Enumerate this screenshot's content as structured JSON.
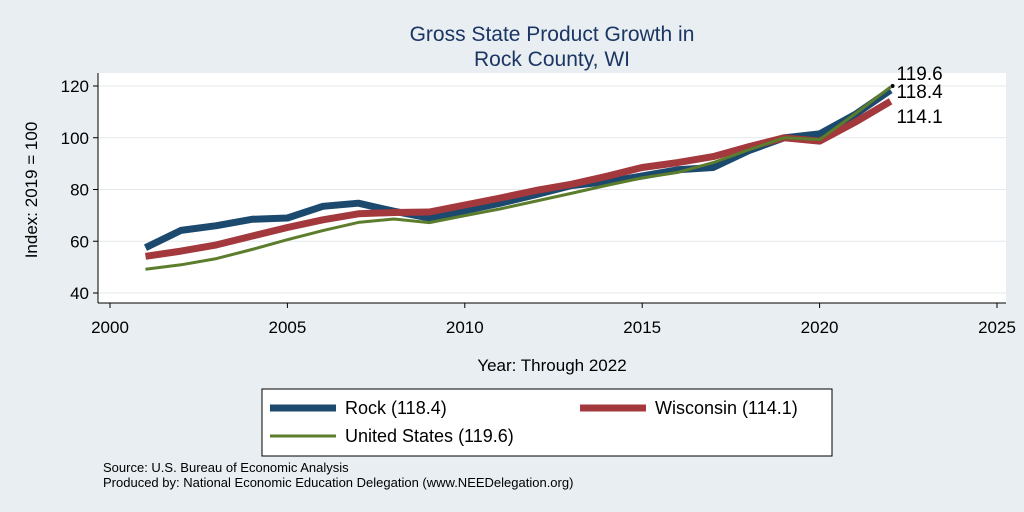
{
  "chart_data": {
    "type": "line",
    "title": [
      "Gross State Product Growth in",
      "Rock County, WI"
    ],
    "xlabel": "Year: Through 2022",
    "ylabel": "Index: 2019 = 100",
    "xlim": [
      2000,
      2025
    ],
    "ylim": [
      40,
      120
    ],
    "x_ticks": [
      2000,
      2005,
      2010,
      2015,
      2020,
      2025
    ],
    "y_ticks": [
      40,
      60,
      80,
      100,
      120
    ],
    "grid": true,
    "x": [
      2001,
      2002,
      2003,
      2004,
      2005,
      2006,
      2007,
      2008,
      2009,
      2010,
      2011,
      2012,
      2013,
      2014,
      2015,
      2016,
      2017,
      2018,
      2019,
      2020,
      2021,
      2022
    ],
    "series": [
      {
        "name": "Rock",
        "color": "#1c4a6e",
        "values": [
          57.5,
          64.2,
          66.0,
          68.5,
          69.0,
          73.5,
          74.7,
          71.6,
          69.0,
          71.8,
          74.7,
          78.0,
          81.5,
          83.0,
          85.2,
          87.6,
          88.5,
          95.0,
          100.0,
          101.5,
          109.0,
          118.4
        ],
        "end_label": "118.4"
      },
      {
        "name": "Wisconsin",
        "color": "#a3383d",
        "values": [
          54.2,
          56.2,
          58.6,
          62.0,
          65.3,
          68.3,
          70.6,
          71.1,
          71.3,
          74.0,
          76.7,
          79.6,
          82.0,
          85.1,
          88.5,
          90.4,
          92.7,
          96.5,
          100.0,
          98.7,
          106.0,
          114.1
        ],
        "end_label": "114.1"
      },
      {
        "name": "United States",
        "color": "#5b7d2c",
        "values": [
          49.2,
          50.9,
          53.3,
          56.8,
          60.6,
          64.1,
          67.3,
          68.6,
          67.2,
          69.9,
          72.5,
          75.5,
          78.5,
          81.6,
          84.5,
          86.6,
          90.4,
          95.3,
          100.0,
          99.3,
          109.2,
          119.6
        ],
        "end_label": "119.6"
      }
    ],
    "legend": {
      "position": "bottom",
      "entries": [
        "Rock  (118.4)",
        "Wisconsin (114.1)",
        "United States (119.6)"
      ]
    }
  },
  "notes": {
    "source": "Source: U.S. Bureau of Economic Analysis",
    "produced": "Produced by: National Economic Education Delegation (www.NEEDelegation.org)"
  }
}
